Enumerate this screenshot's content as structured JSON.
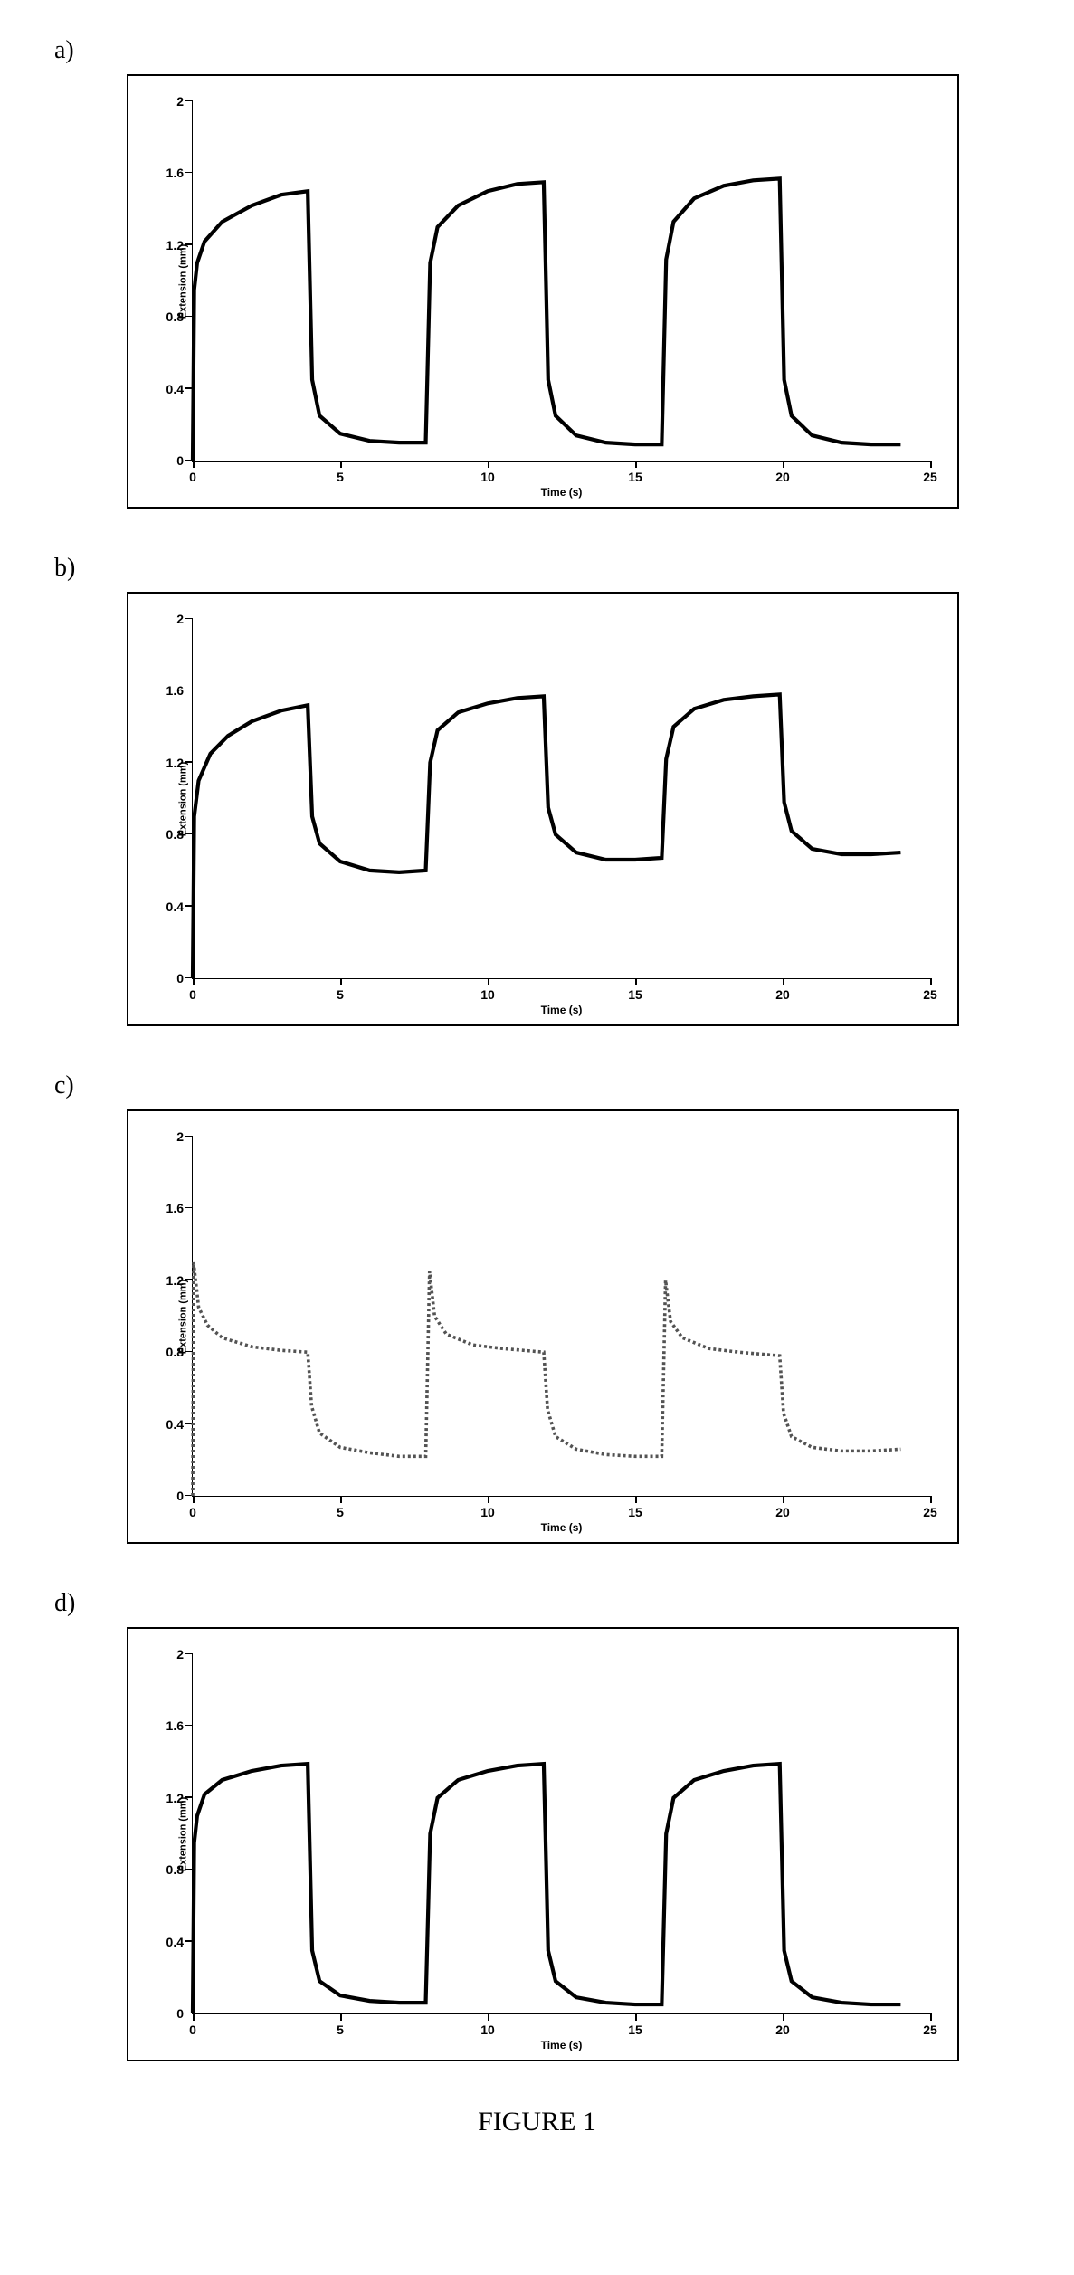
{
  "figure_caption": "FIGURE 1",
  "global_style": {
    "background_color": "#ffffff",
    "border_color": "#000000",
    "axis_color": "#000000",
    "tick_font_family": "Arial, sans-serif",
    "tick_font_weight": "bold",
    "tick_fontsize": 14,
    "axis_label_fontsize": 12,
    "panel_label_fontsize": 28,
    "panel_label_font_family": "Times New Roman, serif"
  },
  "panels": [
    {
      "label": "a)",
      "chart": {
        "type": "line",
        "xlabel": "Time (s)",
        "ylabel": "Extension (mm)",
        "xlim": [
          0,
          25
        ],
        "ylim": [
          0,
          2
        ],
        "xticks": [
          0,
          5,
          10,
          15,
          20,
          25
        ],
        "yticks": [
          0,
          0.4,
          0.8,
          1.2,
          1.6,
          2
        ],
        "line_color": "#000000",
        "line_width": 1.4,
        "data": [
          [
            0.0,
            0.0
          ],
          [
            0.05,
            0.95
          ],
          [
            0.15,
            1.1
          ],
          [
            0.4,
            1.22
          ],
          [
            1.0,
            1.33
          ],
          [
            2.0,
            1.42
          ],
          [
            3.0,
            1.48
          ],
          [
            3.9,
            1.5
          ],
          [
            4.05,
            0.45
          ],
          [
            4.3,
            0.25
          ],
          [
            5.0,
            0.15
          ],
          [
            6.0,
            0.11
          ],
          [
            7.0,
            0.1
          ],
          [
            7.9,
            0.1
          ],
          [
            8.05,
            1.1
          ],
          [
            8.3,
            1.3
          ],
          [
            9.0,
            1.42
          ],
          [
            10.0,
            1.5
          ],
          [
            11.0,
            1.54
          ],
          [
            11.9,
            1.55
          ],
          [
            12.05,
            0.45
          ],
          [
            12.3,
            0.25
          ],
          [
            13.0,
            0.14
          ],
          [
            14.0,
            0.1
          ],
          [
            15.0,
            0.09
          ],
          [
            15.9,
            0.09
          ],
          [
            16.05,
            1.12
          ],
          [
            16.3,
            1.33
          ],
          [
            17.0,
            1.46
          ],
          [
            18.0,
            1.53
          ],
          [
            19.0,
            1.56
          ],
          [
            19.9,
            1.57
          ],
          [
            20.05,
            0.45
          ],
          [
            20.3,
            0.25
          ],
          [
            21.0,
            0.14
          ],
          [
            22.0,
            0.1
          ],
          [
            23.0,
            0.09
          ],
          [
            24.0,
            0.09
          ]
        ]
      }
    },
    {
      "label": "b)",
      "chart": {
        "type": "line",
        "xlabel": "Time (s)",
        "ylabel": "Extension (mm)",
        "xlim": [
          0,
          25
        ],
        "ylim": [
          0,
          2
        ],
        "xticks": [
          0,
          5,
          10,
          15,
          20,
          25
        ],
        "yticks": [
          0,
          0.4,
          0.8,
          1.2,
          1.6,
          2
        ],
        "line_color": "#000000",
        "line_width": 1.4,
        "data": [
          [
            0.0,
            0.0
          ],
          [
            0.05,
            0.9
          ],
          [
            0.2,
            1.1
          ],
          [
            0.6,
            1.25
          ],
          [
            1.2,
            1.35
          ],
          [
            2.0,
            1.43
          ],
          [
            3.0,
            1.49
          ],
          [
            3.9,
            1.52
          ],
          [
            4.05,
            0.9
          ],
          [
            4.3,
            0.75
          ],
          [
            5.0,
            0.65
          ],
          [
            6.0,
            0.6
          ],
          [
            7.0,
            0.59
          ],
          [
            7.9,
            0.6
          ],
          [
            8.05,
            1.2
          ],
          [
            8.3,
            1.38
          ],
          [
            9.0,
            1.48
          ],
          [
            10.0,
            1.53
          ],
          [
            11.0,
            1.56
          ],
          [
            11.9,
            1.57
          ],
          [
            12.05,
            0.95
          ],
          [
            12.3,
            0.8
          ],
          [
            13.0,
            0.7
          ],
          [
            14.0,
            0.66
          ],
          [
            15.0,
            0.66
          ],
          [
            15.9,
            0.67
          ],
          [
            16.05,
            1.22
          ],
          [
            16.3,
            1.4
          ],
          [
            17.0,
            1.5
          ],
          [
            18.0,
            1.55
          ],
          [
            19.0,
            1.57
          ],
          [
            19.9,
            1.58
          ],
          [
            20.05,
            0.98
          ],
          [
            20.3,
            0.82
          ],
          [
            21.0,
            0.72
          ],
          [
            22.0,
            0.69
          ],
          [
            23.0,
            0.69
          ],
          [
            24.0,
            0.7
          ]
        ]
      }
    },
    {
      "label": "c)",
      "chart": {
        "type": "line",
        "xlabel": "Time (s)",
        "ylabel": "Extension (mm)",
        "xlim": [
          0,
          25
        ],
        "ylim": [
          0,
          2
        ],
        "xticks": [
          0,
          5,
          10,
          15,
          20,
          25
        ],
        "yticks": [
          0,
          0.4,
          0.8,
          1.2,
          1.6,
          2
        ],
        "line_color": "#535353",
        "line_width": 1.2,
        "dashed": true,
        "data": [
          [
            0.0,
            0.0
          ],
          [
            0.03,
            1.3
          ],
          [
            0.2,
            1.05
          ],
          [
            0.5,
            0.95
          ],
          [
            1.0,
            0.88
          ],
          [
            2.0,
            0.83
          ],
          [
            3.0,
            0.81
          ],
          [
            3.9,
            0.8
          ],
          [
            4.03,
            0.5
          ],
          [
            4.3,
            0.35
          ],
          [
            5.0,
            0.27
          ],
          [
            6.0,
            0.24
          ],
          [
            7.0,
            0.22
          ],
          [
            7.9,
            0.22
          ],
          [
            8.03,
            1.25
          ],
          [
            8.2,
            1.0
          ],
          [
            8.6,
            0.9
          ],
          [
            9.5,
            0.84
          ],
          [
            10.5,
            0.82
          ],
          [
            11.9,
            0.8
          ],
          [
            12.03,
            0.48
          ],
          [
            12.3,
            0.33
          ],
          [
            13.0,
            0.26
          ],
          [
            14.0,
            0.23
          ],
          [
            15.0,
            0.22
          ],
          [
            15.9,
            0.22
          ],
          [
            16.03,
            1.2
          ],
          [
            16.2,
            0.97
          ],
          [
            16.6,
            0.88
          ],
          [
            17.5,
            0.82
          ],
          [
            18.5,
            0.8
          ],
          [
            19.9,
            0.78
          ],
          [
            20.03,
            0.46
          ],
          [
            20.3,
            0.33
          ],
          [
            21.0,
            0.27
          ],
          [
            22.0,
            0.25
          ],
          [
            23.0,
            0.25
          ],
          [
            24.0,
            0.26
          ]
        ]
      }
    },
    {
      "label": "d)",
      "chart": {
        "type": "line",
        "xlabel": "Time (s)",
        "ylabel": "Extension (mm)",
        "xlim": [
          0,
          25
        ],
        "ylim": [
          0,
          2
        ],
        "xticks": [
          0,
          5,
          10,
          15,
          20,
          25
        ],
        "yticks": [
          0,
          0.4,
          0.8,
          1.2,
          1.6,
          2
        ],
        "line_color": "#000000",
        "line_width": 1.4,
        "data": [
          [
            0.0,
            0.0
          ],
          [
            0.05,
            0.95
          ],
          [
            0.15,
            1.1
          ],
          [
            0.4,
            1.22
          ],
          [
            1.0,
            1.3
          ],
          [
            2.0,
            1.35
          ],
          [
            3.0,
            1.38
          ],
          [
            3.9,
            1.39
          ],
          [
            4.05,
            0.35
          ],
          [
            4.3,
            0.18
          ],
          [
            5.0,
            0.1
          ],
          [
            6.0,
            0.07
          ],
          [
            7.0,
            0.06
          ],
          [
            7.9,
            0.06
          ],
          [
            8.05,
            1.0
          ],
          [
            8.3,
            1.2
          ],
          [
            9.0,
            1.3
          ],
          [
            10.0,
            1.35
          ],
          [
            11.0,
            1.38
          ],
          [
            11.9,
            1.39
          ],
          [
            12.05,
            0.35
          ],
          [
            12.3,
            0.18
          ],
          [
            13.0,
            0.09
          ],
          [
            14.0,
            0.06
          ],
          [
            15.0,
            0.05
          ],
          [
            15.9,
            0.05
          ],
          [
            16.05,
            1.0
          ],
          [
            16.3,
            1.2
          ],
          [
            17.0,
            1.3
          ],
          [
            18.0,
            1.35
          ],
          [
            19.0,
            1.38
          ],
          [
            19.9,
            1.39
          ],
          [
            20.05,
            0.35
          ],
          [
            20.3,
            0.18
          ],
          [
            21.0,
            0.09
          ],
          [
            22.0,
            0.06
          ],
          [
            23.0,
            0.05
          ],
          [
            24.0,
            0.05
          ]
        ]
      }
    }
  ]
}
